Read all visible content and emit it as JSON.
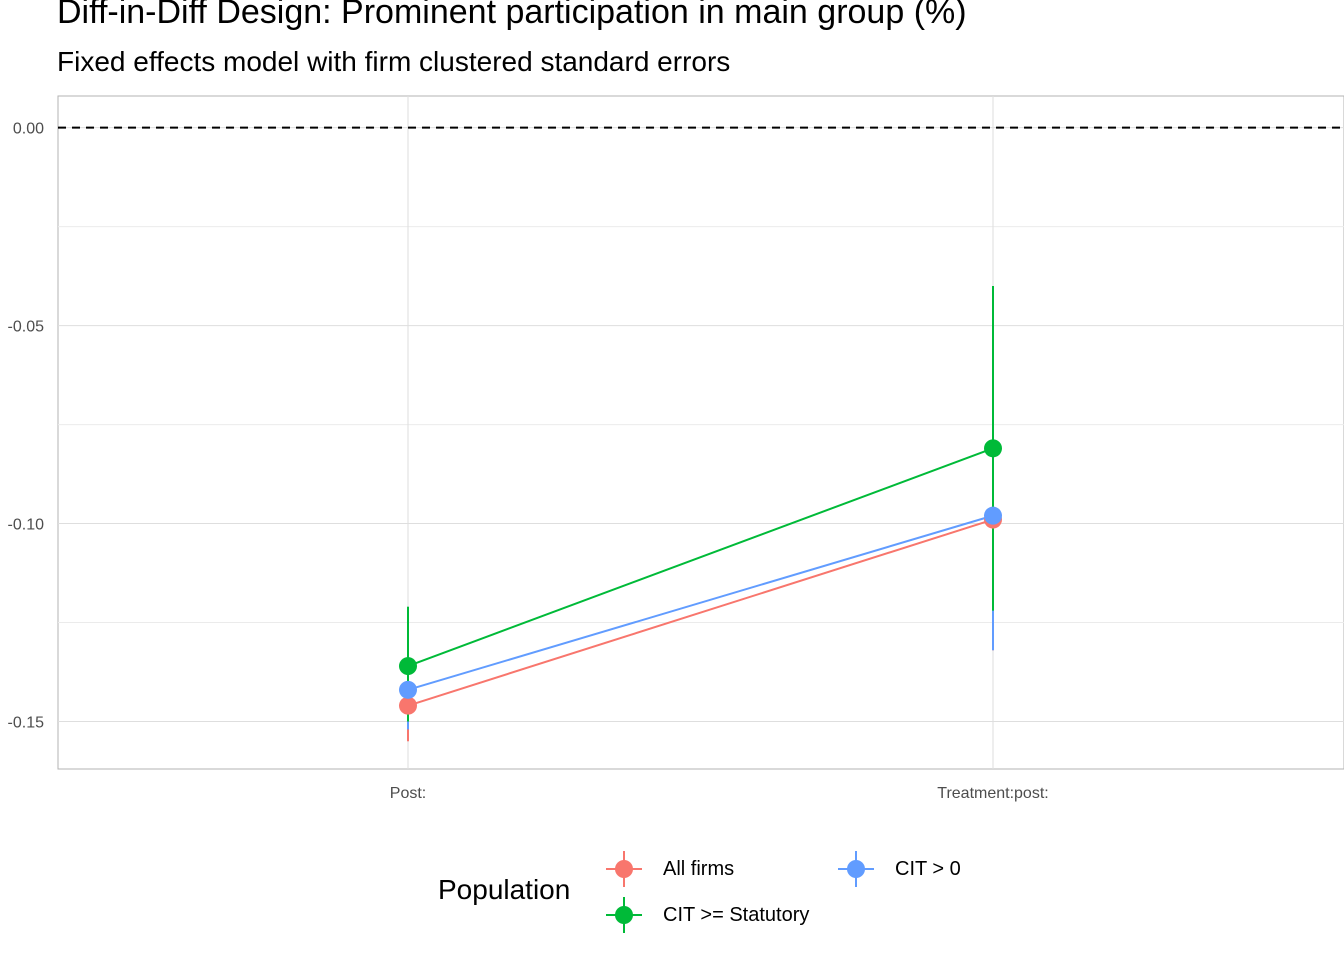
{
  "title": "Diff-in-Diff Design: Prominent participation in main group (%)",
  "subtitle": "Fixed effects model with firm clustered standard errors",
  "chart_data": {
    "type": "scatter",
    "categories": [
      "Post:",
      "Treatment:post:"
    ],
    "ylim": [
      -0.162,
      0.008
    ],
    "yticks": [
      0.0,
      -0.05,
      -0.1,
      -0.15
    ],
    "ytick_labels": [
      "0.00",
      "-0.05",
      "-0.10",
      "-0.15"
    ],
    "reference_line": 0,
    "grid": true,
    "legend_title": "Population",
    "legend_position": "bottom",
    "series": [
      {
        "name": "All firms",
        "color": "#F8766D",
        "values": [
          -0.146,
          -0.099
        ],
        "lower": [
          -0.155,
          -0.132
        ],
        "upper": [
          -0.136,
          -0.066
        ]
      },
      {
        "name": "CIT >= Statutory",
        "color": "#00BA38",
        "values": [
          -0.136,
          -0.081
        ],
        "lower": [
          -0.15,
          -0.122
        ],
        "upper": [
          -0.121,
          -0.04
        ]
      },
      {
        "name": "CIT > 0",
        "color": "#619CFF",
        "values": [
          -0.142,
          -0.098
        ],
        "lower": [
          -0.152,
          -0.132
        ],
        "upper": [
          -0.133,
          -0.063
        ]
      }
    ]
  }
}
